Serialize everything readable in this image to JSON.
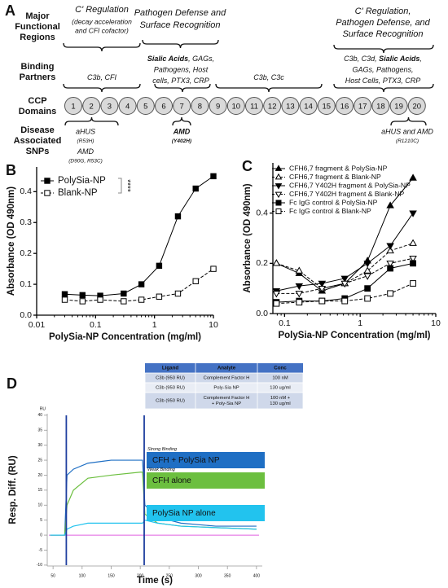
{
  "panel_a": {
    "label": "A",
    "row_labels": [
      [
        "Major",
        "Functional",
        "Regions"
      ],
      [
        "Binding",
        "Partners"
      ],
      [
        "CCP",
        "Domains"
      ],
      [
        "Disease",
        "Associated",
        "SNPs"
      ]
    ],
    "regions": [
      [
        "C' Regulation",
        "(decay acceleration",
        "and CFI cofactor)"
      ],
      [
        "Pathogen Defense and",
        "Surface Recognition"
      ],
      [
        "C' Regulation,",
        "Pathogen Defense, and",
        "Surface Recognition"
      ]
    ],
    "binding": [
      [
        [
          {
            "text": "C3b, CFI"
          }
        ]
      ],
      [
        [
          {
            "text": "Sialic Acids",
            "bold": true
          },
          {
            "text": ", GAGs,"
          }
        ],
        [
          {
            "text": "Pathogens, Host"
          }
        ],
        [
          {
            "text": "cells, PTX3, CRP"
          }
        ]
      ],
      [
        [
          {
            "text": "C3b, C3c"
          }
        ]
      ],
      [
        [
          {
            "text": "C3b, C3d, "
          },
          {
            "text": "Sialic Acids",
            "bold": true
          },
          {
            "text": ","
          }
        ],
        [
          {
            "text": "GAGs, Pathogens,"
          }
        ],
        [
          {
            "text": "Host Cells, PTX3, CRP"
          }
        ]
      ]
    ],
    "domains": [
      "1",
      "2",
      "3",
      "4",
      "5",
      "6",
      "7",
      "8",
      "9",
      "10",
      "11",
      "12",
      "13",
      "14",
      "15",
      "16",
      "17",
      "18",
      "19",
      "20"
    ],
    "snps": [
      {
        "lines": [
          "aHUS",
          "(R53H)",
          "AMD",
          "(D90G, R53C)"
        ]
      },
      {
        "lines": [
          "AMD",
          "(Y402H)"
        ],
        "bold": true
      },
      {
        "lines": [
          "aHUS and AMD",
          "(R1210C)"
        ]
      }
    ]
  },
  "chart_data": [
    {
      "panel": "B",
      "type": "line",
      "x_label": "PolySia-NP Concentration (mg/ml)",
      "y_label": "Absorbance (OD 490nm)",
      "xscale": "log",
      "xlim": [
        0.01,
        10
      ],
      "xticks": [
        0.01,
        0.1,
        1,
        10
      ],
      "ylim": [
        0,
        0.48
      ],
      "yticks": [
        {
          "value": 0,
          "label": "0.0"
        },
        0.1,
        0.2,
        0.3,
        0.4
      ],
      "legend": "upper left",
      "annotation": "****",
      "x": [
        0.03,
        0.06,
        0.12,
        0.3,
        0.6,
        1.2,
        2.5,
        5,
        10
      ],
      "series": [
        {
          "name": "PolySia-NP",
          "color": "#000000",
          "marker": "square",
          "filled": true,
          "dashed": false,
          "values": [
            0.068,
            0.065,
            0.063,
            0.07,
            0.1,
            0.16,
            0.32,
            0.41,
            0.45
          ]
        },
        {
          "name": "Blank-NP",
          "color": "#000000",
          "marker": "square",
          "filled": false,
          "dashed": true,
          "values": [
            0.05,
            0.045,
            0.05,
            0.045,
            0.05,
            0.06,
            0.07,
            0.11,
            0.15
          ]
        }
      ]
    },
    {
      "panel": "C",
      "type": "line",
      "x_label": "PolySia-NP Concentration (mg/ml)",
      "y_label": "Absorbance (OD 490nm)",
      "xscale": "log",
      "xlim": [
        0.07,
        10
      ],
      "xticks": [
        0.1,
        1,
        10
      ],
      "ylim": [
        0,
        0.6
      ],
      "yticks": [
        {
          "value": 0,
          "label": "0.0"
        },
        0.2,
        0.4
      ],
      "legend": "upper left",
      "x": [
        0.078,
        0.156,
        0.3125,
        0.625,
        1.25,
        2.5,
        5
      ],
      "series": [
        {
          "name": "CFH6,7 fragment & PolySia-NP",
          "color": "#000000",
          "marker": "triangle-up",
          "filled": true,
          "dashed": false,
          "values": [
            0.2,
            0.16,
            0.09,
            0.12,
            0.21,
            0.43,
            0.54
          ]
        },
        {
          "name": "CFH6,7 fragment & Blank-NP",
          "color": "#000000",
          "marker": "triangle-up",
          "filled": false,
          "dashed": true,
          "values": [
            0.2,
            0.17,
            0.1,
            0.12,
            0.17,
            0.25,
            0.28
          ]
        },
        {
          "name": "CFH6,7 Y402H fragment & PolySia-NP",
          "color": "#000000",
          "marker": "triangle-down",
          "filled": true,
          "dashed": false,
          "values": [
            0.09,
            0.11,
            0.12,
            0.14,
            0.2,
            0.27,
            0.4
          ]
        },
        {
          "name": "CFH6,7 Y402H fragment & Blank-NP",
          "color": "#000000",
          "marker": "triangle-down",
          "filled": false,
          "dashed": true,
          "values": [
            0.08,
            0.08,
            0.1,
            0.12,
            0.15,
            0.2,
            0.22
          ]
        },
        {
          "name": "Fc IgG control & PolySia-NP",
          "color": "#000000",
          "marker": "square",
          "filled": true,
          "dashed": false,
          "values": [
            0.045,
            0.05,
            0.05,
            0.06,
            0.1,
            0.18,
            0.2
          ]
        },
        {
          "name": "Fc IgG control & Blank-NP",
          "color": "#000000",
          "marker": "square",
          "filled": false,
          "dashed": true,
          "values": [
            0.04,
            0.045,
            0.05,
            0.05,
            0.06,
            0.08,
            0.12
          ]
        }
      ]
    },
    {
      "panel": "D",
      "type": "sensorgram",
      "x_label": "Time (s)",
      "y_label": "Resp. Diff. (RU)",
      "y_unit": "RU",
      "xlim": [
        40,
        410
      ],
      "xticks": [
        50,
        100,
        150,
        200,
        250,
        300,
        350,
        400
      ],
      "ylim": [
        -10.3,
        40.5
      ],
      "yticks": [
        -10,
        -5,
        0,
        5,
        10,
        15,
        20,
        25,
        30,
        35,
        40
      ],
      "annotations": [
        "Strong Binding",
        "Weak Binding"
      ],
      "x": [
        45,
        70,
        74,
        85,
        110,
        150,
        200,
        204,
        208,
        230,
        270,
        330,
        400
      ],
      "series": [
        {
          "name": "CFH + PolySia NP",
          "color": "#1f6fc4",
          "values": [
            0,
            0,
            20,
            22,
            24,
            25,
            25,
            25,
            10,
            6,
            4,
            3,
            3
          ]
        },
        {
          "name": "CFH alone",
          "color": "#6cbf3f",
          "values": [
            0,
            0,
            10,
            15,
            19,
            20,
            21,
            21,
            7,
            4,
            3,
            2.5,
            2
          ]
        },
        {
          "name": "PolySia NP alone",
          "color": "#22c3ee",
          "values": [
            0,
            0,
            2,
            3,
            4,
            4,
            4,
            4,
            5,
            4,
            3,
            2.5,
            2
          ]
        }
      ],
      "table": {
        "header": [
          "Ligand",
          "Analyte",
          "Conc"
        ],
        "rows": [
          [
            "C3b (950 RU)",
            "Complement Factor H",
            "100 nM"
          ],
          [
            "C3b (950 RU)",
            "Poly-Sia NP",
            "130 ug/ml"
          ],
          [
            "C3b (950 RU)",
            [
              "Complement Factor H",
              "+ Poly-Sia NP"
            ],
            [
              "100 nM +",
              "130 ug/ml"
            ]
          ]
        ]
      }
    }
  ]
}
